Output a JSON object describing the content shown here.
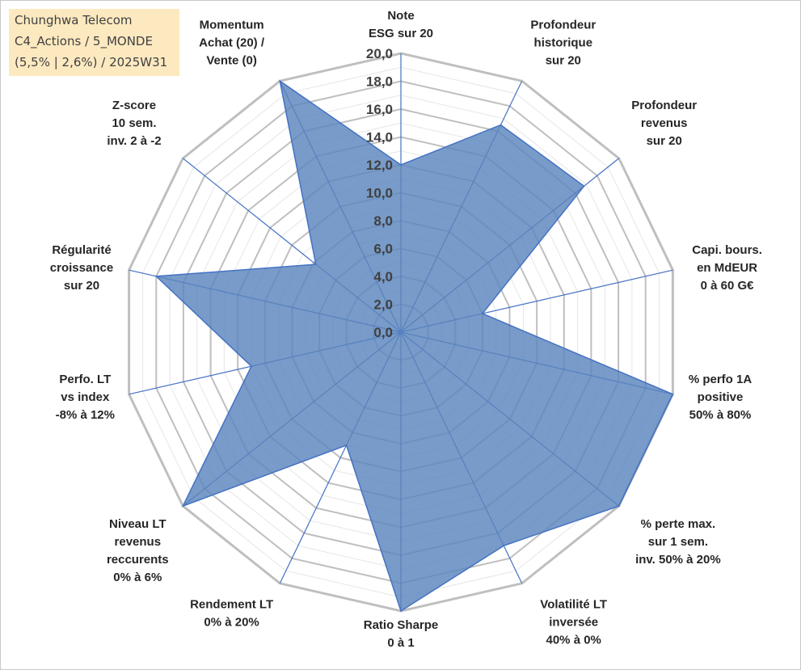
{
  "info_box": {
    "line1": "Chunghwa Telecom",
    "line2": "C4_Actions / 5_MONDE",
    "line3": "(5,5% | 2,6%) / 2025W31"
  },
  "colors": {
    "fill": "#5a85bd",
    "stroke": "#4472c4",
    "grid_major": "#bfbfbf",
    "grid_minor": "#e6e6e6",
    "info_box_bg": "#fde9c0"
  },
  "chart_data": {
    "type": "radar",
    "rmin": 0,
    "rmax": 20,
    "ticks": [
      "0,0",
      "2,0",
      "4,0",
      "6,0",
      "8,0",
      "10,0",
      "12,0",
      "14,0",
      "16,0",
      "18,0",
      "20,0"
    ],
    "axes": [
      {
        "label": [
          "Note",
          "ESG sur 20"
        ],
        "value": 12.0
      },
      {
        "label": [
          "Profondeur",
          "historique",
          "sur 20"
        ],
        "value": 16.5
      },
      {
        "label": [
          "Profondeur",
          "revenus",
          "sur 20"
        ],
        "value": 16.8
      },
      {
        "label": [
          "Capi. bours.",
          "en MdEUR",
          "0 à 60 G€"
        ],
        "value": 6.0
      },
      {
        "label": [
          "% perfo 1A",
          "positive",
          "50% à 80%"
        ],
        "value": 20.0
      },
      {
        "label": [
          "% perte max.",
          "sur 1 sem.",
          "inv. 50% à 20%"
        ],
        "value": 20.0
      },
      {
        "label": [
          "Volatilité LT",
          "inversée",
          "40% à 0%"
        ],
        "value": 17.0
      },
      {
        "label": [
          "Ratio Sharpe",
          "0 à 1"
        ],
        "value": 20.0
      },
      {
        "label": [
          "Rendement LT",
          "0% à 20%"
        ],
        "value": 9.0
      },
      {
        "label": [
          "Niveau LT",
          "revenus",
          "reccurents",
          "0% à 6%"
        ],
        "value": 20.0
      },
      {
        "label": [
          "Perfo. LT",
          "vs index",
          "-8% à 12%"
        ],
        "value": 11.0
      },
      {
        "label": [
          "Régularité",
          "croissance",
          "sur 20"
        ],
        "value": 18.0
      },
      {
        "label": [
          "Z-score",
          "10 sem.",
          "inv. 2 à -2"
        ],
        "value": 7.8
      },
      {
        "label": [
          "Momentum",
          "Achat (20) /",
          "Vente (0)"
        ],
        "value": 20.0
      }
    ]
  }
}
